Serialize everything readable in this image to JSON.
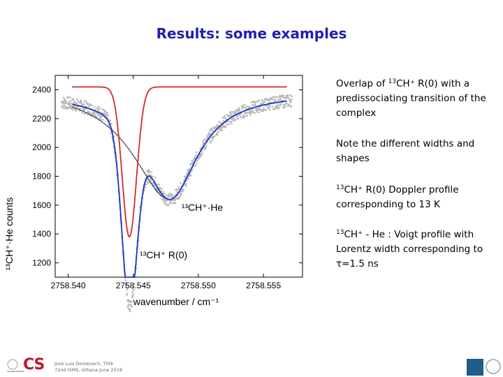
{
  "slide": {
    "title": "Results: some examples",
    "p1": {
      "pre": "Overlap of ",
      "sup": "13",
      "post": "CH⁺ R(0) with a predissociating transition of the complex"
    },
    "p2": "Note the different widths and shapes",
    "p3": {
      "sup": "13",
      "post": "CH⁺ R(0)   Doppler profile corresponding to 13 K"
    },
    "p4": {
      "sup": "13",
      "post": "CH⁺ - He :  Voigt profile with Lorentz width corresponding to τ=1.5 ns"
    }
  },
  "footer": {
    "line1": "José Luis Doménech, TI09",
    "line2": "72nd ISMS,  Urbana June 2018",
    "logo_text": "CS"
  },
  "chart_data": {
    "type": "scatter",
    "xlabel": "wavenumber / cm⁻¹",
    "ylabel": "¹³CH⁺·He counts",
    "xlim": [
      2758.539,
      2758.558
    ],
    "ylim": [
      1100,
      2500
    ],
    "x_ticks": [
      "2758.540",
      "2758.545",
      "2758.550",
      "2758.555"
    ],
    "x_tick_values": [
      2758.54,
      2758.545,
      2758.55,
      2758.555
    ],
    "y_ticks": [
      1200,
      1400,
      1600,
      1800,
      2000,
      2200,
      2400
    ],
    "annotations": [
      {
        "text": "¹³CH⁺·He",
        "x": 2758.5487,
        "y": 1560
      },
      {
        "text": "¹³CH⁺ R(0)",
        "x": 2758.5455,
        "y": 1230
      }
    ],
    "series": [
      {
        "values_desc": "measured points",
        "color": "#b9b9b9"
      },
      {
        "values_desc": "fit",
        "color": "#1a33c8"
      },
      {
        "values_desc": "Doppler profile",
        "color": "#d42a2a"
      },
      {
        "values_desc": "Voigt profile",
        "color": "#333333"
      }
    ],
    "baseline": 2420,
    "doppler_center": 2758.5447,
    "doppler_depth": 1040,
    "doppler_sigma": 0.00055,
    "fit_main_depth": 1180,
    "fit_main_center": 2758.5447,
    "fit_main_sigma": 0.00058,
    "voigt_center": 2758.5478,
    "voigt_depth": 780,
    "voigt_gamma": 0.0035,
    "fit_voigt_gamma": 0.0026,
    "noise": 45,
    "colors": {
      "fit": "#1a33c8",
      "doppler": "#d42a2a",
      "voigt": "#333333",
      "points": "#b9b9b9",
      "title": "#1f1fb0"
    }
  }
}
